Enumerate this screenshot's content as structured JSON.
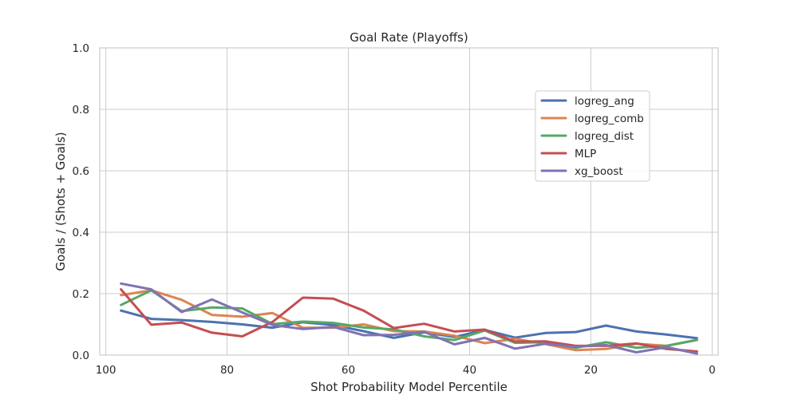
{
  "chart_data": {
    "type": "line",
    "title": "Goal Rate (Playoffs)",
    "xlabel": "Shot Probability Model Percentile",
    "ylabel": "Goals / (Shots + Goals)",
    "xlim": [
      101,
      -1
    ],
    "ylim": [
      0,
      1
    ],
    "x_ticks": [
      100,
      80,
      60,
      40,
      20,
      0
    ],
    "y_ticks": [
      0.0,
      0.2,
      0.4,
      0.6,
      0.8,
      1.0
    ],
    "y_tick_labels": [
      "0.0",
      "0.2",
      "0.4",
      "0.6",
      "0.8",
      "1.0"
    ],
    "grid": true,
    "legend_position": "upper-right",
    "x": [
      97.5,
      92.5,
      87.5,
      82.5,
      77.5,
      72.5,
      67.5,
      62.5,
      57.5,
      52.5,
      47.5,
      42.5,
      37.5,
      32.5,
      27.5,
      22.5,
      17.5,
      12.5,
      7.5,
      2.5
    ],
    "series": [
      {
        "name": "logreg_ang",
        "color": "#4c72b0",
        "values": [
          0.145,
          0.118,
          0.114,
          0.108,
          0.1,
          0.089,
          0.107,
          0.098,
          0.078,
          0.056,
          0.074,
          0.059,
          0.082,
          0.057,
          0.072,
          0.075,
          0.096,
          0.077,
          0.067,
          0.055
        ]
      },
      {
        "name": "logreg_comb",
        "color": "#dd8452",
        "values": [
          0.195,
          0.211,
          0.18,
          0.131,
          0.125,
          0.137,
          0.089,
          0.089,
          0.1,
          0.078,
          0.077,
          0.063,
          0.039,
          0.053,
          0.036,
          0.016,
          0.02,
          0.037,
          0.03,
          0.049
        ]
      },
      {
        "name": "logreg_dist",
        "color": "#55a868",
        "values": [
          0.163,
          0.211,
          0.143,
          0.155,
          0.152,
          0.101,
          0.109,
          0.105,
          0.09,
          0.084,
          0.061,
          0.049,
          0.08,
          0.04,
          0.042,
          0.024,
          0.042,
          0.024,
          0.03,
          0.05
        ]
      },
      {
        "name": "MLP",
        "color": "#c44e52",
        "values": [
          0.214,
          0.099,
          0.106,
          0.073,
          0.061,
          0.108,
          0.187,
          0.184,
          0.145,
          0.088,
          0.102,
          0.077,
          0.083,
          0.044,
          0.045,
          0.03,
          0.03,
          0.038,
          0.02,
          0.012
        ]
      },
      {
        "name": "xg_boost",
        "color": "#8172b3",
        "values": [
          0.233,
          0.214,
          0.14,
          0.181,
          0.139,
          0.098,
          0.085,
          0.092,
          0.065,
          0.066,
          0.076,
          0.035,
          0.056,
          0.021,
          0.037,
          0.027,
          0.033,
          0.009,
          0.026,
          0.005
        ]
      }
    ]
  }
}
